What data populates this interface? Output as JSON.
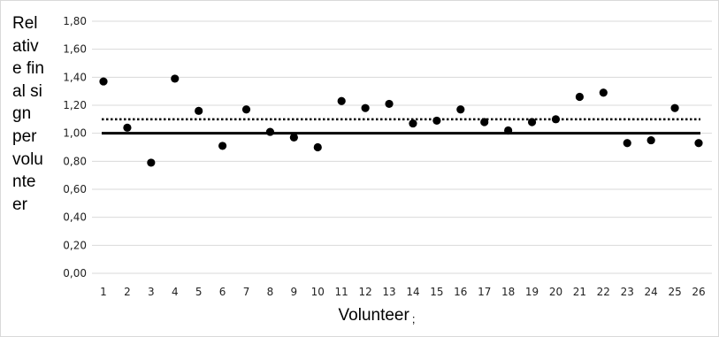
{
  "chart_data": {
    "type": "scatter",
    "xlabel": "Volunteer",
    "xlabel_suffix": ";",
    "ylabel": "Relative final sign per volunteer",
    "categories": [
      "1",
      "2",
      "3",
      "4",
      "5",
      "6",
      "7",
      "8",
      "9",
      "10",
      "11",
      "12",
      "13",
      "14",
      "15",
      "16",
      "17",
      "18",
      "19",
      "20",
      "21",
      "22",
      "23",
      "24",
      "25",
      "26"
    ],
    "values": [
      1.37,
      1.04,
      0.79,
      1.39,
      1.16,
      0.91,
      1.17,
      1.01,
      0.97,
      0.9,
      1.23,
      1.18,
      1.21,
      1.07,
      1.09,
      1.17,
      1.08,
      1.02,
      1.08,
      1.1,
      1.26,
      1.29,
      0.93,
      0.95,
      1.18,
      0.93
    ],
    "y_ticks": [
      "0,00",
      "0,20",
      "0,40",
      "0,60",
      "0,80",
      "1,00",
      "1,20",
      "1,40",
      "1,60",
      "1,80"
    ],
    "ylim": [
      0,
      1.8
    ],
    "reference_lines": [
      {
        "style": "solid",
        "value": 1.0
      },
      {
        "style": "dotted",
        "value": 1.1
      }
    ],
    "grid": true,
    "marker_color": "#000000",
    "grid_color": "#d9d9d9"
  }
}
